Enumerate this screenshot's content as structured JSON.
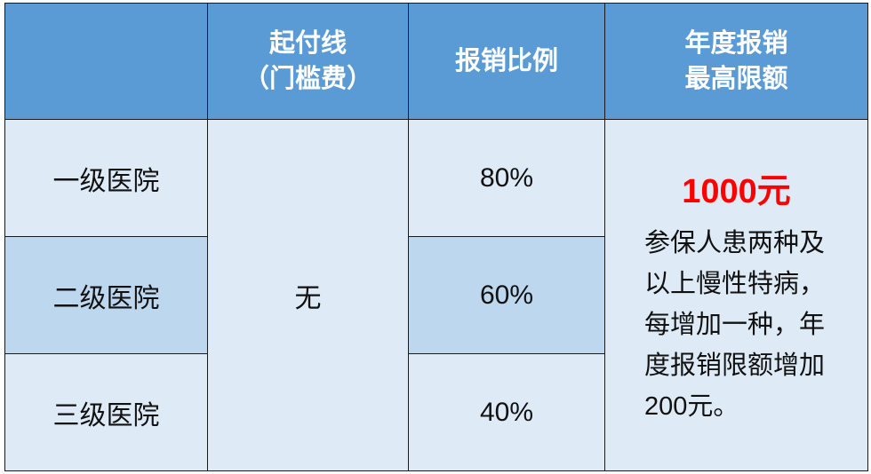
{
  "header": {
    "col0": "",
    "col1_line1": "起付线",
    "col1_line2": "（门槛费）",
    "col2": "报销比例",
    "col3_line1": "年度报销",
    "col3_line2": "最高限额"
  },
  "rows": [
    {
      "hospital": "一级医院",
      "ratio": "80%"
    },
    {
      "hospital": "二级医院",
      "ratio": "60%"
    },
    {
      "hospital": "三级医院",
      "ratio": "40%"
    }
  ],
  "deductible": "无",
  "limit": {
    "amount": "1000元",
    "note": "参保人患两种及以上慢性特病，每增加一种，年度报销限额增加200元。"
  },
  "colors": {
    "header": "#5b9bd5",
    "light": "#deebf7",
    "dark": "#bdd7ee",
    "highlight": "#ff0000"
  }
}
